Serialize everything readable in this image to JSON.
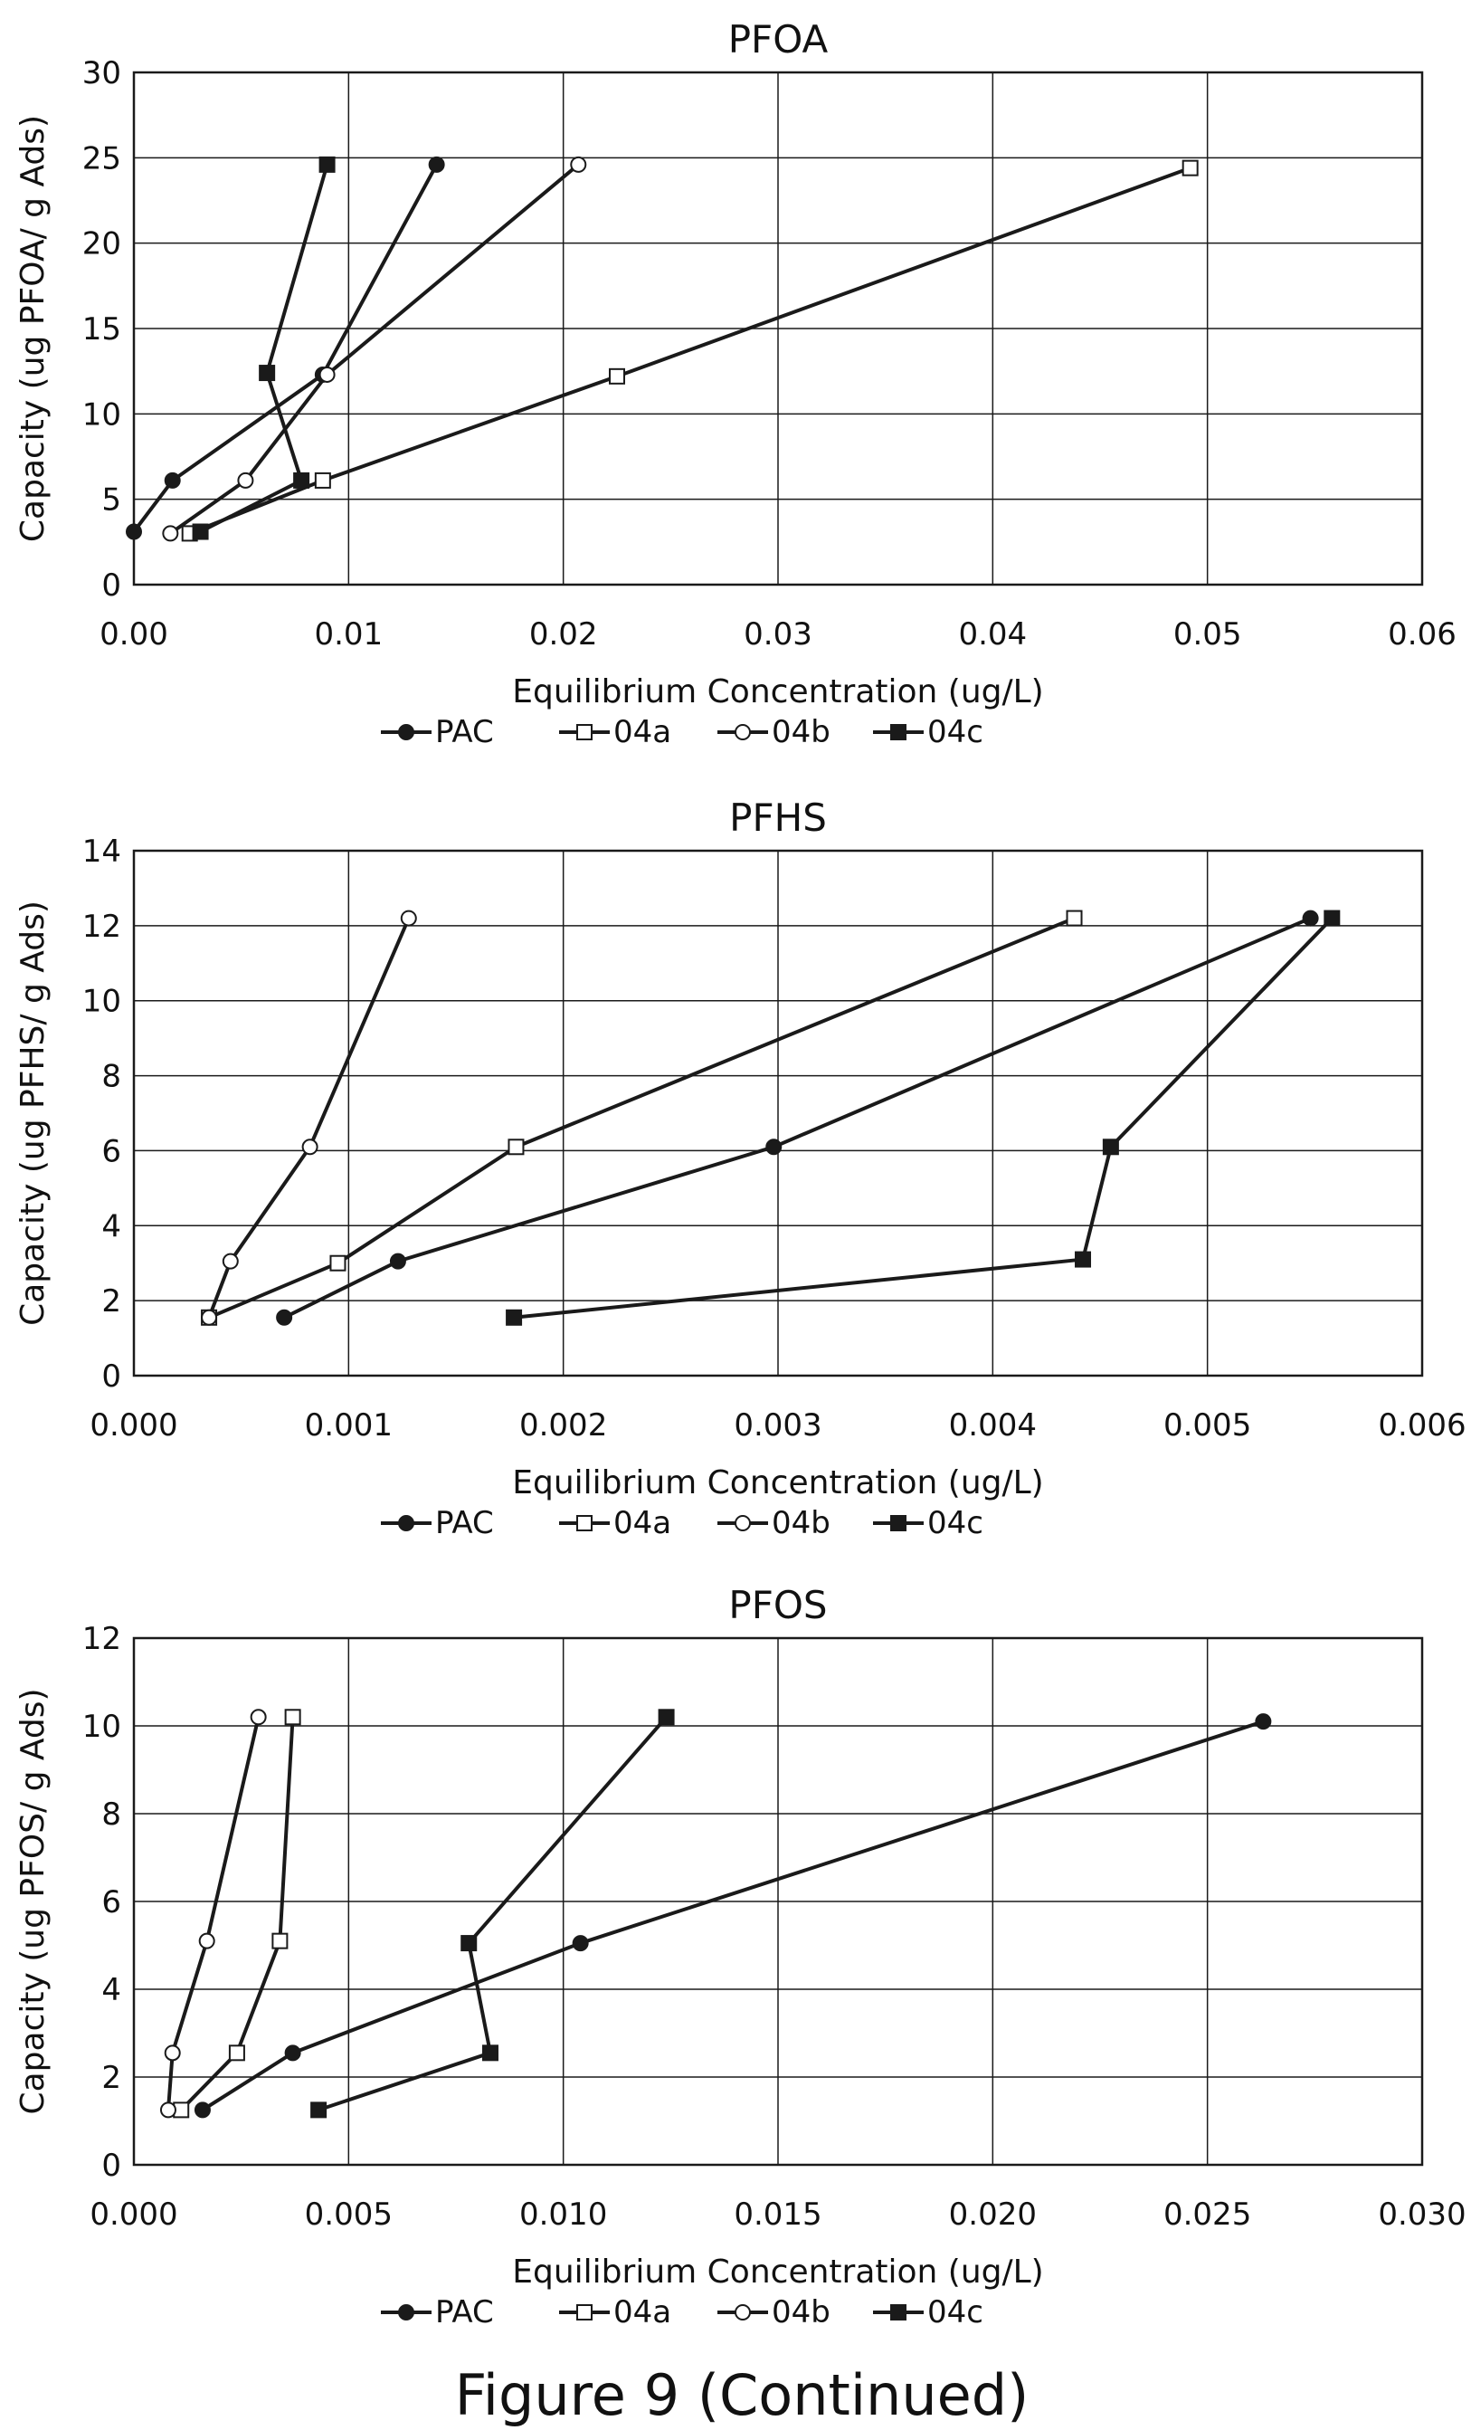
{
  "figure": {
    "caption": "Figure 9 (Continued)"
  },
  "chart_data": [
    {
      "type": "scatter",
      "title": "PFOA",
      "xlabel": "Equilibrium Concentration (ug/L)",
      "ylabel": "Capacity (ug PFOA/ g Ads)",
      "xlim": [
        0,
        0.06
      ],
      "ylim": [
        0,
        30
      ],
      "xticks": [
        "0.00",
        "0.01",
        "0.02",
        "0.03",
        "0.04",
        "0.05",
        "0.06"
      ],
      "xtick_values": [
        0,
        0.01,
        0.02,
        0.03,
        0.04,
        0.05,
        0.06
      ],
      "yticks": [
        "0",
        "5",
        "10",
        "15",
        "20",
        "25",
        "30"
      ],
      "ytick_values": [
        0,
        5,
        10,
        15,
        20,
        25,
        30
      ],
      "grid": true,
      "legend": "bottom",
      "series": [
        {
          "name": "PAC",
          "marker": "filled-circle",
          "x": [
            0.0,
            0.0018,
            0.0088,
            0.0141
          ],
          "y": [
            3.1,
            6.1,
            12.3,
            24.6
          ]
        },
        {
          "name": "04a",
          "marker": "open-square",
          "x": [
            0.0026,
            0.0088,
            0.0225,
            0.0492
          ],
          "y": [
            3.0,
            6.1,
            12.2,
            24.4
          ]
        },
        {
          "name": "04b",
          "marker": "open-circle",
          "x": [
            0.0017,
            0.0052,
            0.009,
            0.0207
          ],
          "y": [
            3.0,
            6.1,
            12.3,
            24.6
          ]
        },
        {
          "name": "04c",
          "marker": "filled-square",
          "x": [
            0.0031,
            0.0078,
            0.0062,
            0.009
          ],
          "y": [
            3.1,
            6.1,
            12.4,
            24.6
          ]
        }
      ]
    },
    {
      "type": "scatter",
      "title": "PFHS",
      "xlabel": "Equilibrium Concentration (ug/L)",
      "ylabel": "Capacity (ug PFHS/ g Ads)",
      "xlim": [
        0,
        0.006
      ],
      "ylim": [
        0,
        14
      ],
      "xticks": [
        "0.000",
        "0.001",
        "0.002",
        "0.003",
        "0.004",
        "0.005",
        "0.006"
      ],
      "xtick_values": [
        0,
        0.001,
        0.002,
        0.003,
        0.004,
        0.005,
        0.006
      ],
      "yticks": [
        "0",
        "2",
        "4",
        "6",
        "8",
        "10",
        "12",
        "14"
      ],
      "ytick_values": [
        0,
        2,
        4,
        6,
        8,
        10,
        12,
        14
      ],
      "grid": true,
      "legend": "bottom",
      "series": [
        {
          "name": "PAC",
          "marker": "filled-circle",
          "x": [
            0.0007,
            0.00123,
            0.00298,
            0.00548
          ],
          "y": [
            1.55,
            3.05,
            6.1,
            12.2
          ]
        },
        {
          "name": "04a",
          "marker": "open-square",
          "x": [
            0.00035,
            0.00095,
            0.00178,
            0.00438
          ],
          "y": [
            1.55,
            3.0,
            6.1,
            12.2
          ]
        },
        {
          "name": "04b",
          "marker": "open-circle",
          "x": [
            0.00035,
            0.00045,
            0.00082,
            0.00128
          ],
          "y": [
            1.55,
            3.05,
            6.1,
            12.2
          ]
        },
        {
          "name": "04c",
          "marker": "filled-square",
          "x": [
            0.00177,
            0.00442,
            0.00455,
            0.00558
          ],
          "y": [
            1.55,
            3.1,
            6.1,
            12.2
          ]
        }
      ]
    },
    {
      "type": "scatter",
      "title": "PFOS",
      "xlabel": "Equilibrium Concentration (ug/L)",
      "ylabel": "Capacity (ug PFOS/ g Ads)",
      "xlim": [
        0,
        0.03
      ],
      "ylim": [
        0,
        12
      ],
      "xticks": [
        "0.000",
        "0.005",
        "0.010",
        "0.015",
        "0.020",
        "0.025",
        "0.030"
      ],
      "xtick_values": [
        0,
        0.005,
        0.01,
        0.015,
        0.02,
        0.025,
        0.03
      ],
      "yticks": [
        "0",
        "2",
        "4",
        "6",
        "8",
        "10",
        "12"
      ],
      "ytick_values": [
        0,
        2,
        4,
        6,
        8,
        10,
        12
      ],
      "grid": true,
      "legend": "bottom",
      "series": [
        {
          "name": "PAC",
          "marker": "filled-circle",
          "x": [
            0.0016,
            0.0037,
            0.0104,
            0.0263
          ],
          "y": [
            1.25,
            2.55,
            5.05,
            10.1
          ]
        },
        {
          "name": "04a",
          "marker": "open-square",
          "x": [
            0.0011,
            0.0024,
            0.0034,
            0.0037
          ],
          "y": [
            1.25,
            2.55,
            5.1,
            10.2
          ]
        },
        {
          "name": "04b",
          "marker": "open-circle",
          "x": [
            0.0008,
            0.0009,
            0.0017,
            0.0029
          ],
          "y": [
            1.25,
            2.55,
            5.1,
            10.2
          ]
        },
        {
          "name": "04c",
          "marker": "filled-square",
          "x": [
            0.0043,
            0.0083,
            0.0078,
            0.0124
          ],
          "y": [
            1.25,
            2.55,
            5.05,
            10.2
          ]
        }
      ]
    }
  ]
}
